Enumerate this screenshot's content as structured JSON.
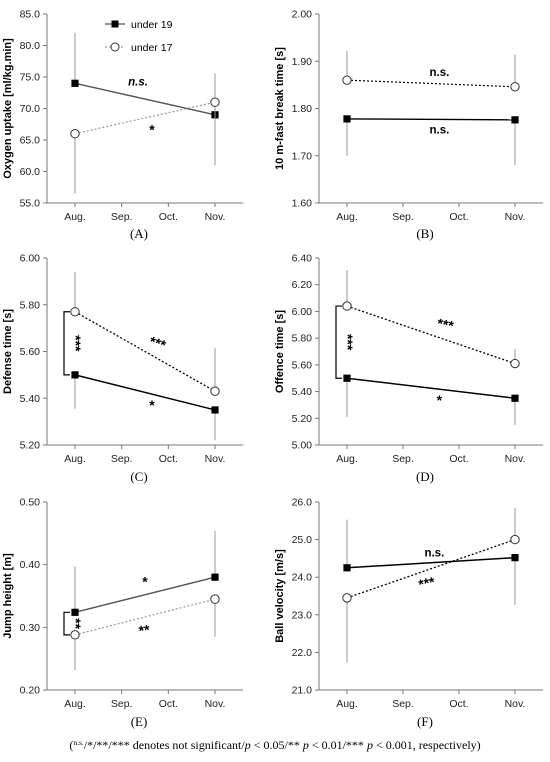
{
  "chart_data": [
    {
      "panel_label": "(A)",
      "type": "line",
      "ylabel": "Oxygen uptake [ml/kg.min]",
      "ylim": [
        55,
        85
      ],
      "yticks": [
        "55.0",
        "60.0",
        "65.0",
        "70.0",
        "75.0",
        "80.0",
        "85.0"
      ],
      "categories": [
        "Aug.",
        "Sep.",
        "Oct.",
        "Nov."
      ],
      "series": [
        {
          "name": "under 19",
          "x": [
            "Aug.",
            "Nov."
          ],
          "values": [
            74.0,
            69.0
          ],
          "err_up": [
            8.0,
            6.6
          ],
          "err_down": [
            0,
            0
          ]
        },
        {
          "name": "under 17",
          "x": [
            "Aug.",
            "Nov."
          ],
          "values": [
            66.0,
            71.0
          ],
          "err_up": [
            0,
            0
          ],
          "err_down": [
            9.5,
            10.0
          ]
        }
      ],
      "annotations": [
        {
          "text": "n.s.",
          "series": "under 19"
        },
        {
          "text": "*",
          "series": "under 17"
        }
      ],
      "legend_position": "top-left"
    },
    {
      "panel_label": "(B)",
      "type": "line",
      "ylabel": "10 m-fast break time [s]",
      "ylim": [
        1.6,
        2.0
      ],
      "yticks": [
        "1.60",
        "1.70",
        "1.80",
        "1.90",
        "2.00"
      ],
      "categories": [
        "Aug.",
        "Sep.",
        "Oct.",
        "Nov."
      ],
      "series": [
        {
          "name": "under 19",
          "x": [
            "Aug.",
            "Nov."
          ],
          "values": [
            1.778,
            1.776
          ],
          "err_up": [
            0,
            0
          ],
          "err_down": [
            0.078,
            0.096
          ]
        },
        {
          "name": "under 17",
          "x": [
            "Aug.",
            "Nov."
          ],
          "values": [
            1.86,
            1.846
          ],
          "err_up": [
            0.062,
            0.068
          ],
          "err_down": [
            0,
            0
          ]
        }
      ],
      "annotations": [
        {
          "text": "n.s.",
          "series": "under 17"
        },
        {
          "text": "n.s.",
          "series": "under 19"
        }
      ]
    },
    {
      "panel_label": "(C)",
      "type": "line",
      "ylabel": "Defense time [s]",
      "ylim": [
        5.2,
        6.0
      ],
      "yticks": [
        "5.20",
        "5.40",
        "5.60",
        "5.80",
        "6.00"
      ],
      "categories": [
        "Aug.",
        "Sep.",
        "Oct.",
        "Nov."
      ],
      "series": [
        {
          "name": "under 19",
          "x": [
            "Aug.",
            "Nov."
          ],
          "values": [
            5.5,
            5.35
          ],
          "err_up": [
            0,
            0
          ],
          "err_down": [
            0.145,
            0.13
          ]
        },
        {
          "name": "under 17",
          "x": [
            "Aug.",
            "Nov."
          ],
          "values": [
            5.77,
            5.43
          ],
          "err_up": [
            0.17,
            0.185
          ],
          "err_down": [
            0,
            0
          ]
        }
      ],
      "annotations": [
        {
          "text": "***",
          "series": "under 17"
        },
        {
          "text": "*",
          "series": "under 19"
        },
        {
          "text": "***",
          "between_groups": "Aug."
        }
      ]
    },
    {
      "panel_label": "(D)",
      "type": "line",
      "ylabel": "Offence time [s]",
      "ylim": [
        5.0,
        6.4
      ],
      "yticks": [
        "5.00",
        "5.20",
        "5.40",
        "5.60",
        "5.80",
        "6.00",
        "6.20",
        "6.40"
      ],
      "categories": [
        "Aug.",
        "Sep.",
        "Oct.",
        "Nov."
      ],
      "series": [
        {
          "name": "under 19",
          "x": [
            "Aug.",
            "Nov."
          ],
          "values": [
            5.5,
            5.35
          ],
          "err_up": [
            0,
            0
          ],
          "err_down": [
            0.29,
            0.2
          ]
        },
        {
          "name": "under 17",
          "x": [
            "Aug.",
            "Nov."
          ],
          "values": [
            6.04,
            5.61
          ],
          "err_up": [
            0.27,
            0.11
          ],
          "err_down": [
            0,
            0
          ]
        }
      ],
      "annotations": [
        {
          "text": "***",
          "series": "under 17"
        },
        {
          "text": "*",
          "series": "under 19"
        },
        {
          "text": "***",
          "between_groups": "Aug."
        }
      ]
    },
    {
      "panel_label": "(E)",
      "type": "line",
      "ylabel": "Jump height [m]",
      "ylim": [
        0.2,
        0.5
      ],
      "yticks": [
        "0.20",
        "0.30",
        "0.40",
        "0.50"
      ],
      "categories": [
        "Aug.",
        "Sep.",
        "Oct.",
        "Nov."
      ],
      "series": [
        {
          "name": "under 19",
          "x": [
            "Aug.",
            "Nov."
          ],
          "values": [
            0.324,
            0.38
          ],
          "err_up": [
            0.073,
            0.074
          ],
          "err_down": [
            0,
            0
          ]
        },
        {
          "name": "under 17",
          "x": [
            "Aug.",
            "Nov."
          ],
          "values": [
            0.288,
            0.345
          ],
          "err_up": [
            0,
            0
          ],
          "err_down": [
            0.056,
            0.06
          ]
        }
      ],
      "annotations": [
        {
          "text": "*",
          "series": "under 19"
        },
        {
          "text": "**",
          "series": "under 17"
        },
        {
          "text": "**",
          "between_groups": "Aug."
        }
      ]
    },
    {
      "panel_label": "(F)",
      "type": "line",
      "ylabel": "Ball velocity [m/s]",
      "ylim": [
        21.0,
        26.0
      ],
      "yticks": [
        "21.0",
        "22.0",
        "23.0",
        "24.0",
        "25.0",
        "26.0"
      ],
      "categories": [
        "Aug.",
        "Sep.",
        "Oct.",
        "Nov."
      ],
      "series": [
        {
          "name": "under 19",
          "x": [
            "Aug.",
            "Nov."
          ],
          "values": [
            24.25,
            24.52
          ],
          "err_up": [
            1.28,
            0
          ],
          "err_down": [
            0,
            1.25
          ]
        },
        {
          "name": "under 17",
          "x": [
            "Aug.",
            "Nov."
          ],
          "values": [
            23.45,
            25.0
          ],
          "err_up": [
            0,
            0.85
          ],
          "err_down": [
            1.72,
            0
          ]
        }
      ],
      "annotations": [
        {
          "text": "n.s.",
          "series": "under 19"
        },
        {
          "text": "***",
          "series": "under 17"
        }
      ]
    }
  ],
  "caption": {
    "ns": "n.s.",
    "text": "/*/**/*** denotes not significant/",
    "p1": "p",
    "t1": " < 0.05/** ",
    "p2": "p",
    "t2": " < 0.01/*** ",
    "p3": "p",
    "t3": " < 0.001, respectively)"
  }
}
